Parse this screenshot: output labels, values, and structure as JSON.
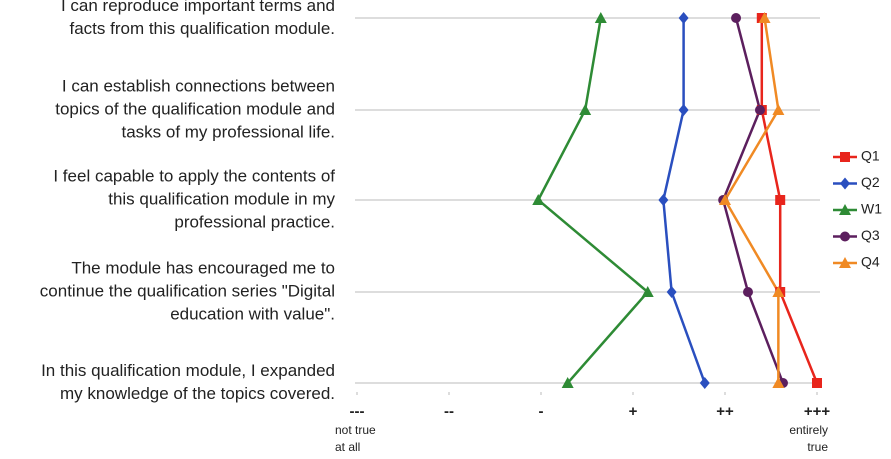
{
  "chart_data": {
    "type": "line",
    "orientation": "horizontal",
    "categories": [
      [
        "I can reproduce important terms and",
        "facts from this qualification module."
      ],
      [
        "I can establish connections between",
        "topics of the qualification module and",
        "tasks of my professional life."
      ],
      [
        "I feel capable to apply the contents of",
        "this qualification module in my",
        "professional practice."
      ],
      [
        "The module has encouraged me to",
        "continue the qualification series \"Digital",
        "education with value\"."
      ],
      [
        "In this qualification module, I expanded",
        "my knowledge of the topics covered."
      ]
    ],
    "series": [
      {
        "name": "Q1",
        "color": "#e8251c",
        "marker": "square",
        "values": [
          5.4,
          5.4,
          5.6,
          5.6,
          6.0
        ]
      },
      {
        "name": "Q2",
        "color": "#2a4fbf",
        "marker": "diamond",
        "values": [
          4.55,
          4.55,
          4.33,
          4.42,
          4.78
        ]
      },
      {
        "name": "W1",
        "color": "#2e8b35",
        "marker": "triangle",
        "values": [
          3.65,
          3.48,
          2.97,
          4.16,
          3.29
        ]
      },
      {
        "name": "Q3",
        "color": "#5c1f5e",
        "marker": "circle",
        "values": [
          5.12,
          5.38,
          4.98,
          5.25,
          5.63
        ]
      },
      {
        "name": "Q4",
        "color": "#f08a24",
        "marker": "triangle",
        "values": [
          5.43,
          5.58,
          5.0,
          5.58,
          5.58
        ]
      }
    ],
    "xlim": [
      1,
      6
    ],
    "xticks": [
      {
        "value": 1,
        "label": "---"
      },
      {
        "value": 2,
        "label": "--"
      },
      {
        "value": 3,
        "label": "-"
      },
      {
        "value": 4,
        "label": "+"
      },
      {
        "value": 5,
        "label": "++"
      },
      {
        "value": 6,
        "label": "+++"
      }
    ],
    "x_left_note": [
      "not true",
      "at all"
    ],
    "x_right_note": [
      "entirely",
      "true"
    ],
    "grid": true,
    "legend": "right"
  }
}
